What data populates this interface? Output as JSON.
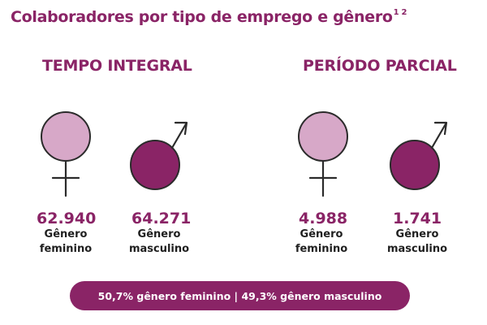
{
  "title": "Colaboradores por tipo de emprego e gênero",
  "title_footnotes": "1 2",
  "colors": {
    "accent": "#8a2466",
    "female_fill": "#d7a8c8",
    "male_fill": "#8a2466",
    "text_dark": "#1f1f1f"
  },
  "sections": [
    {
      "title": "TEMPO INTEGRAL",
      "female": {
        "icon": "female-symbol-icon",
        "value": "62.940",
        "label_line1": "Gênero",
        "label_line2": "feminino"
      },
      "male": {
        "icon": "male-symbol-icon",
        "value": "64.271",
        "label_line1": "Gênero",
        "label_line2": "masculino"
      }
    },
    {
      "title": "PERÍODO PARCIAL",
      "female": {
        "icon": "female-symbol-icon",
        "value": "4.988",
        "label_line1": "Gênero",
        "label_line2": "feminino"
      },
      "male": {
        "icon": "male-symbol-icon",
        "value": "1.741",
        "label_line1": "Gênero",
        "label_line2": "masculino"
      }
    }
  ],
  "summary": "50,7% gênero feminino | 49,3% gênero masculino"
}
